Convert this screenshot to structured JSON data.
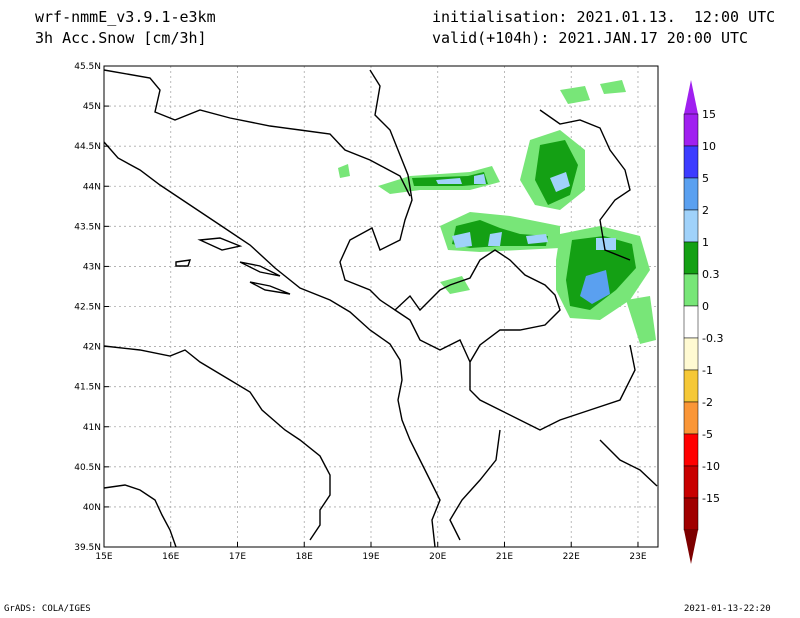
{
  "header": {
    "model": "wrf-nmmE_v3.9.1-e3km",
    "field": "3h Acc.Snow [cm/3h]",
    "init": "initialisation: 2021.01.13.  12:00 UTC",
    "valid": "valid(+104h): 2021.JAN.17 20:00 UTC"
  },
  "footer": {
    "left": "GrADS: COLA/IGES",
    "right": "2021-01-13-22:20"
  },
  "map": {
    "lat_labels": [
      "45.5N",
      "45N",
      "44.5N",
      "44N",
      "43.5N",
      "43N",
      "42.5N",
      "42N",
      "41.5N",
      "41N",
      "40.5N",
      "40N",
      "39.5N"
    ],
    "lat_values": [
      45.5,
      45,
      44.5,
      44,
      43.5,
      43,
      42.5,
      42,
      41.5,
      41,
      40.5,
      40,
      39.5
    ],
    "lon_labels": [
      "15E",
      "16E",
      "17E",
      "18E",
      "19E",
      "20E",
      "21E",
      "22E",
      "23E"
    ],
    "lon_values": [
      15,
      16,
      17,
      18,
      19,
      20,
      21,
      22,
      23
    ],
    "extent": {
      "lon_min": 15,
      "lon_max": 23.3,
      "lat_min": 39.5,
      "lat_max": 45.5
    }
  },
  "colorbar": {
    "labels": [
      "15",
      "10",
      "5",
      "2",
      "1",
      "0.3",
      "0",
      "-0.3",
      "-1",
      "-2",
      "-5",
      "-10",
      "-15"
    ],
    "colors": [
      "#a020f0",
      "#3c3cff",
      "#5aa0f0",
      "#a0d2fa",
      "#14a014",
      "#78e678",
      "#ffffff",
      "#fffad2",
      "#f5c837",
      "#fa9637",
      "#ff0000",
      "#c80000",
      "#a00000"
    ],
    "top_arrow_color": "#a020f0",
    "bottom_arrow_color": "#7d0000"
  }
}
